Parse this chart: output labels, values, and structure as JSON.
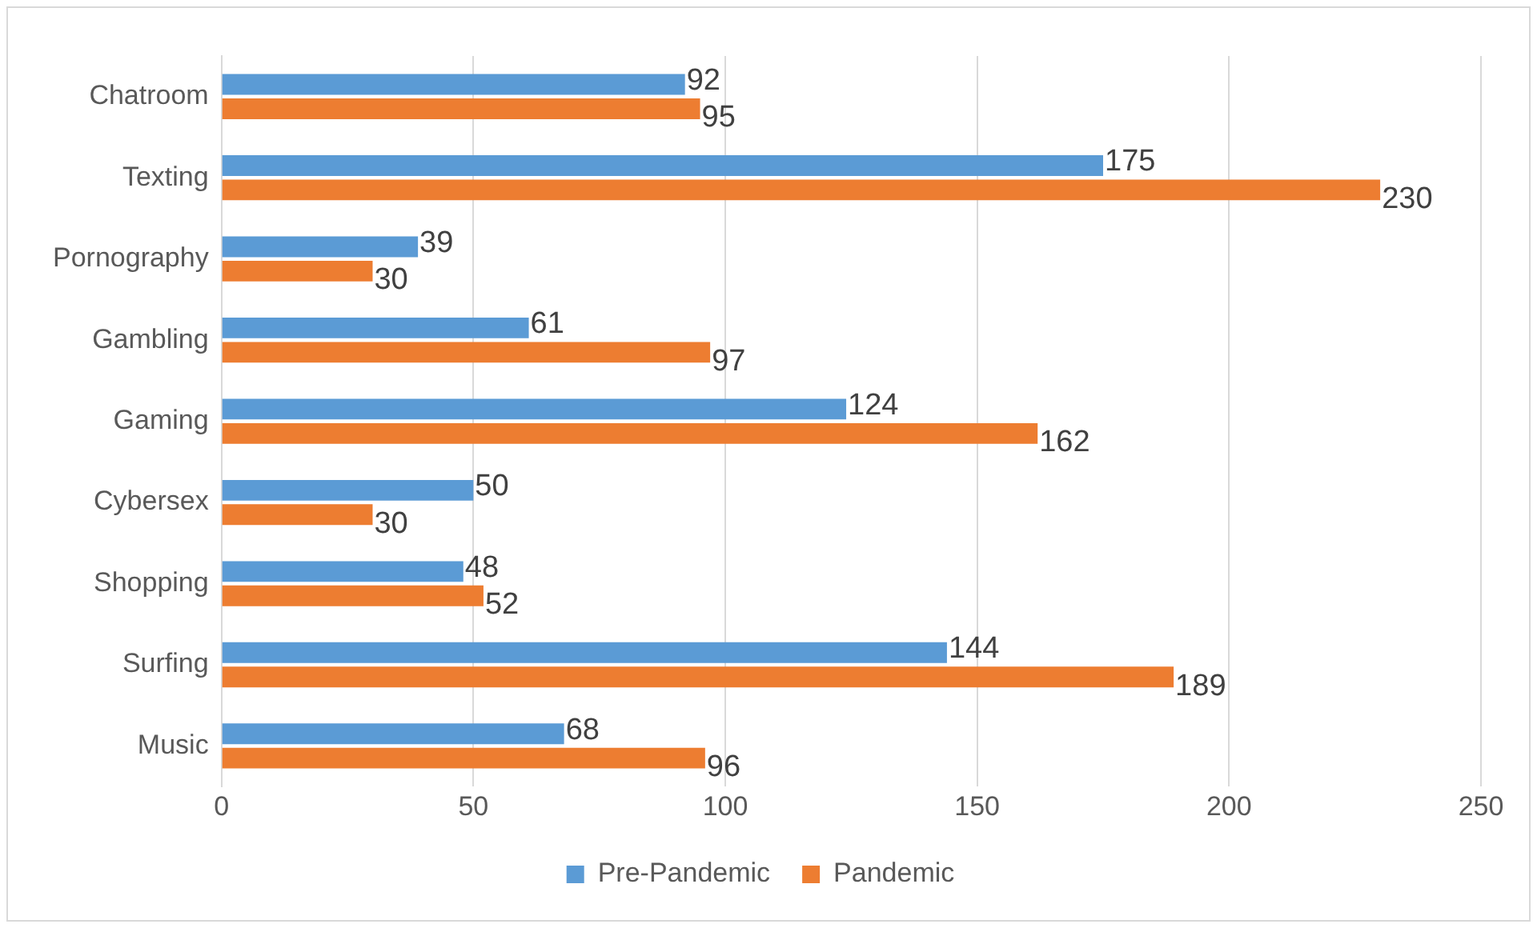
{
  "chart_data": {
    "type": "bar",
    "orientation": "horizontal",
    "categories": [
      "Chatroom",
      "Texting",
      "Pornography",
      "Gambling",
      "Gaming",
      "Cybersex",
      "Shopping",
      "Surfing",
      "Music"
    ],
    "series": [
      {
        "name": "Pre-Pandemic",
        "color": "#5b9bd5",
        "values": [
          92,
          175,
          39,
          61,
          124,
          50,
          48,
          144,
          68
        ]
      },
      {
        "name": "Pandemic",
        "color": "#ed7d31",
        "values": [
          95,
          230,
          30,
          97,
          162,
          30,
          52,
          189,
          96
        ]
      }
    ],
    "xlim": [
      0,
      250
    ],
    "xticks": [
      0,
      50,
      100,
      150,
      200,
      250
    ],
    "grid": "x",
    "legend": "bottom",
    "data_labels": true
  }
}
